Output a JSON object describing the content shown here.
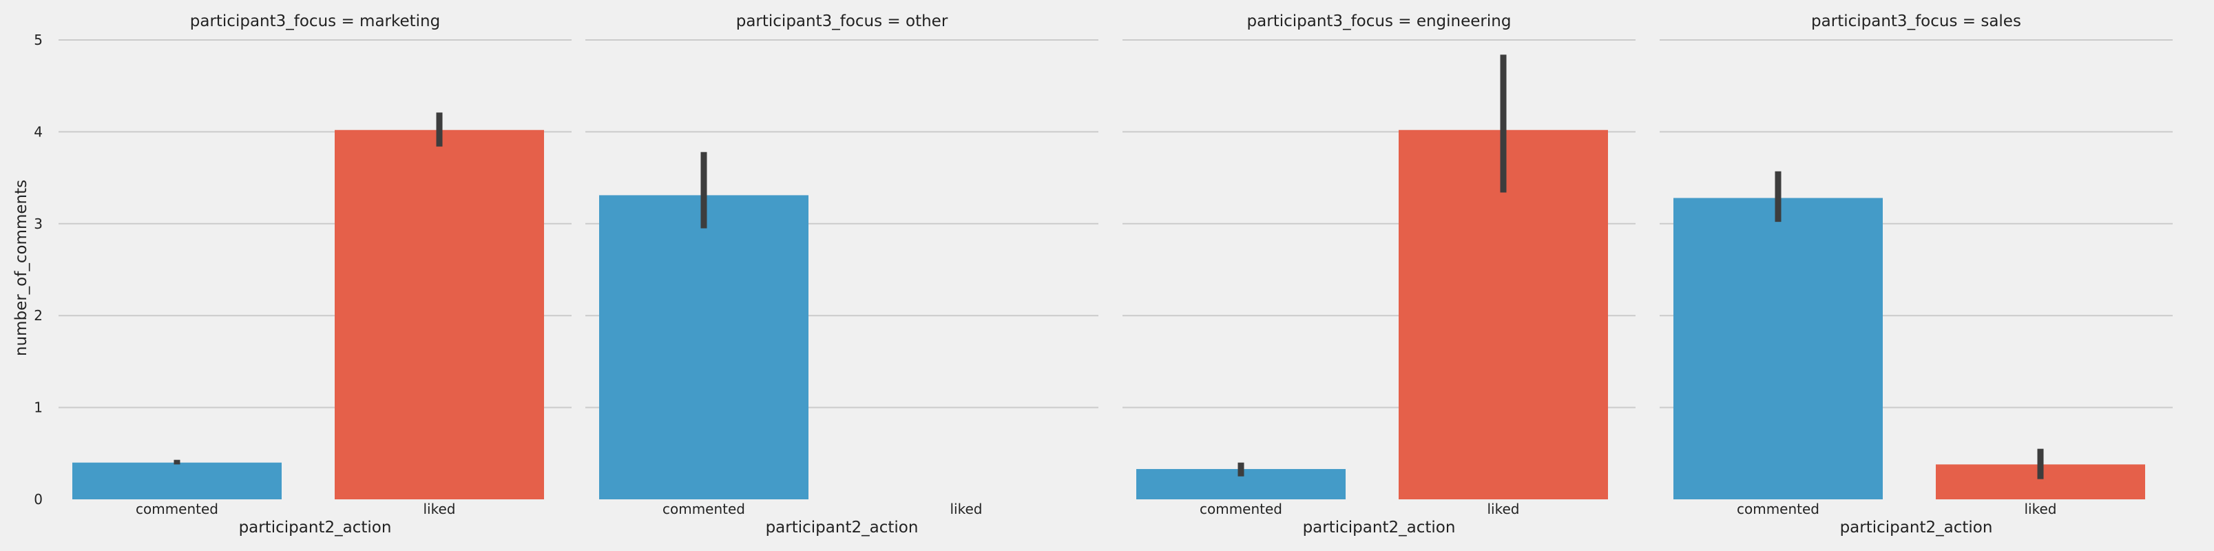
{
  "figure": {
    "ylabel": "number_of_comments",
    "xlabel": "participant2_action"
  },
  "chart_data": {
    "type": "bar",
    "categories": [
      "commented",
      "liked"
    ],
    "ylim": [
      0,
      5
    ],
    "yticks": [
      0,
      1,
      2,
      3,
      4,
      5
    ],
    "grid": true,
    "legend": "none",
    "colors": {
      "commented": "#449bc8",
      "liked": "#e5604a",
      "error_bar": "#3d3d3d"
    },
    "panels": [
      {
        "title": "participant3_focus = marketing",
        "values": [
          0.4,
          4.02
        ],
        "ci": [
          [
            0.38,
            0.43
          ],
          [
            3.84,
            4.21
          ]
        ]
      },
      {
        "title": "participant3_focus = other",
        "values": [
          3.31,
          null
        ],
        "ci": [
          [
            2.95,
            3.78
          ],
          null
        ]
      },
      {
        "title": "participant3_focus = engineering",
        "values": [
          0.33,
          4.02
        ],
        "ci": [
          [
            0.25,
            0.4
          ],
          [
            3.34,
            4.84
          ]
        ]
      },
      {
        "title": "participant3_focus = sales",
        "values": [
          3.28,
          0.38
        ],
        "ci": [
          [
            3.02,
            3.57
          ],
          [
            0.22,
            0.55
          ]
        ]
      }
    ]
  }
}
